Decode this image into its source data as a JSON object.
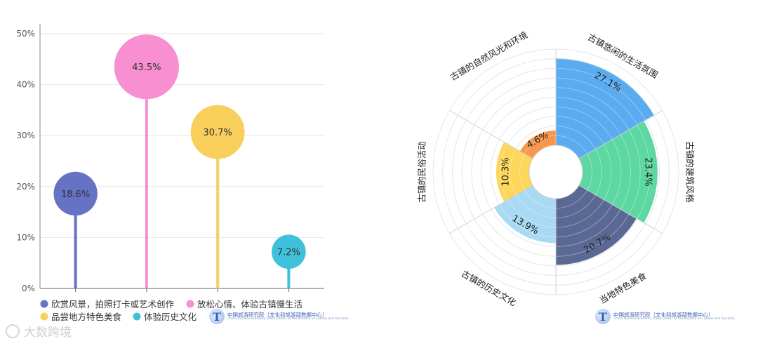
{
  "chart_data": [
    {
      "type": "lollipop",
      "ylim": [
        0,
        50
      ],
      "yticks": [
        "0%",
        "10%",
        "20%",
        "30%",
        "40%",
        "50%"
      ],
      "categories": [
        "欣赏风景，拍照打卡或艺术创作",
        "放松心情、体验古镇慢生活",
        "品尝地方特色美食",
        "体验历史文化"
      ],
      "values": [
        18.6,
        43.5,
        30.7,
        7.2
      ],
      "labels": [
        "18.6%",
        "43.5%",
        "30.7%",
        "7.2%"
      ],
      "colors": [
        "#6672c4",
        "#f78fd1",
        "#f9cf5c",
        "#3fc0db"
      ],
      "legend": "bottom"
    },
    {
      "type": "polar_bar",
      "categories": [
        "古镇悠闲的生活氛围",
        "古镇的建筑风格",
        "当地特色美食",
        "古镇的历史文化",
        "古镇的民俗活动",
        "古镇的自然风光和环境"
      ],
      "values": [
        27.1,
        23.4,
        20.7,
        13.9,
        10.3,
        4.6
      ],
      "labels": [
        "27.1%",
        "23.4%",
        "20.7%",
        "13.9%",
        "10.3%",
        "4.6%"
      ],
      "colors": [
        "#5aabf0",
        "#5dd8a2",
        "#5a6894",
        "#a9daf3",
        "#fcd75c",
        "#f8964c"
      ],
      "rmax": 30
    }
  ],
  "watermark": {
    "cn": "中国旅游研究院（文化和旅游部数据中心）",
    "en": "China Tourism Academy (Data Center of the Ministry of Culture and Tourism)",
    "mark": "T"
  },
  "brand": {
    "text": "大数跨境"
  }
}
